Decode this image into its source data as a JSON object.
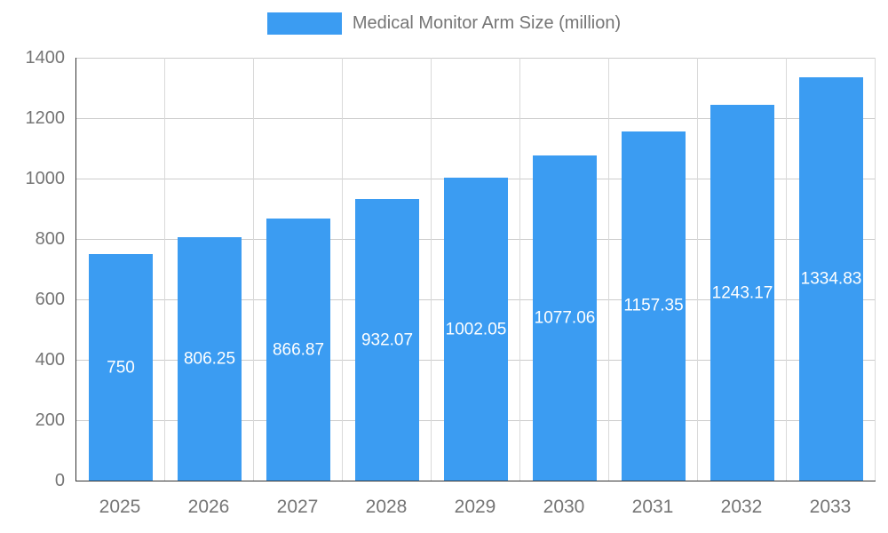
{
  "chart_data": {
    "type": "bar",
    "title": "Medical Monitor Arm Size (million)",
    "categories": [
      "2025",
      "2026",
      "2027",
      "2028",
      "2029",
      "2030",
      "2031",
      "2032",
      "2033"
    ],
    "values": [
      750,
      806.25,
      866.87,
      932.07,
      1002.05,
      1077.06,
      1157.35,
      1243.17,
      1334.83
    ],
    "value_labels": [
      "750",
      "806.25",
      "866.87",
      "932.07",
      "1002.05",
      "1077.06",
      "1157.35",
      "1243.17",
      "1334.83"
    ],
    "xlabel": "",
    "ylabel": "",
    "ylim": [
      0,
      1400
    ],
    "ytick_interval": 200,
    "yticks": [
      "0",
      "200",
      "400",
      "600",
      "800",
      "1000",
      "1200",
      "1400"
    ],
    "grid": true,
    "legend_position": "top",
    "colors": {
      "bar": "#3b9cf2",
      "axis_text": "#757575",
      "grid_line": "#cccccc",
      "axis_line": "#333333",
      "bar_label": "#ffffff",
      "background": "#ffffff"
    }
  }
}
